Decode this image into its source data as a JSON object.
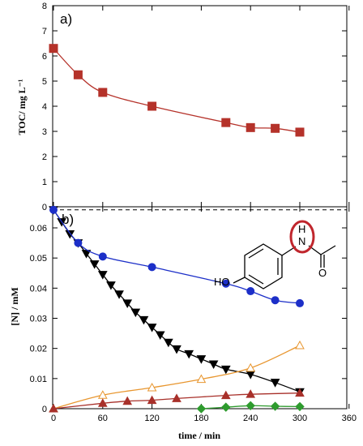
{
  "chart_data": [
    {
      "panel_label": "a)",
      "type": "line",
      "ylabel": "TOC/ mg L⁻¹",
      "xlim": [
        0,
        360
      ],
      "ylim": [
        0,
        8
      ],
      "y_ticks": [
        "0",
        "1",
        "2",
        "3",
        "4",
        "5",
        "6",
        "7",
        "8"
      ],
      "x_ticks": [
        "0",
        "60",
        "120",
        "180",
        "240",
        "300",
        "360"
      ],
      "series": [
        {
          "color": "#b5322a",
          "marker": "square",
          "fill": true,
          "x": [
            0,
            30,
            60,
            120,
            210,
            240,
            270,
            300
          ],
          "y": [
            6.3,
            5.25,
            4.55,
            4.0,
            3.35,
            3.15,
            3.12,
            2.97
          ]
        }
      ]
    },
    {
      "panel_label": "b)",
      "type": "line",
      "ylabel": "[N] / mM",
      "xlabel": "time / min",
      "xlim": [
        0,
        360
      ],
      "ylim": [
        0,
        0.067
      ],
      "y_ticks": [
        "0",
        "0.01",
        "0.02",
        "0.03",
        "0.04",
        "0.05",
        "0.06"
      ],
      "x_ticks": [
        "0",
        "60",
        "120",
        "180",
        "240",
        "300",
        "360"
      ],
      "reference_line": {
        "y": 0.066,
        "style": "dashed"
      },
      "series": [
        {
          "color": "#000000",
          "marker": "triangle-down",
          "fill": true,
          "x": [
            0,
            10,
            20,
            30,
            40,
            50,
            60,
            70,
            80,
            90,
            100,
            110,
            120,
            130,
            140,
            150,
            165,
            180,
            195,
            210,
            240,
            270,
            300
          ],
          "y": [
            0.066,
            0.062,
            0.058,
            0.055,
            0.0515,
            0.048,
            0.0445,
            0.041,
            0.038,
            0.035,
            0.032,
            0.0295,
            0.027,
            0.0245,
            0.022,
            0.0198,
            0.0182,
            0.0165,
            0.0148,
            0.0131,
            0.0114,
            0.0087,
            0.0056
          ]
        },
        {
          "color": "#1c2fc8",
          "marker": "circle",
          "fill": true,
          "x": [
            0,
            30,
            60,
            120,
            210,
            240,
            270,
            300
          ],
          "y": [
            0.066,
            0.055,
            0.0505,
            0.047,
            0.0415,
            0.039,
            0.036,
            0.035
          ]
        },
        {
          "color": "#e8962f",
          "marker": "triangle-up",
          "fill": false,
          "x": [
            0,
            60,
            120,
            180,
            240,
            300
          ],
          "y": [
            0,
            0.0045,
            0.007,
            0.0098,
            0.0135,
            0.021
          ]
        },
        {
          "color": "#a8302a",
          "marker": "triangle-up",
          "fill": true,
          "x": [
            0,
            60,
            90,
            120,
            150,
            210,
            240,
            300
          ],
          "y": [
            0,
            0.0018,
            0.0025,
            0.0028,
            0.0034,
            0.0044,
            0.0048,
            0.0052
          ]
        },
        {
          "color": "#2e9b2e",
          "marker": "diamond",
          "fill": true,
          "x": [
            180,
            210,
            240,
            270,
            300
          ],
          "y": [
            0.0,
            0.0005,
            0.001,
            0.0008,
            0.0007
          ]
        }
      ],
      "molecule": {
        "labels": {
          "ho": "HO",
          "n": "N",
          "h": "H",
          "o": "O"
        },
        "highlight_color": "#c0262d"
      }
    }
  ]
}
